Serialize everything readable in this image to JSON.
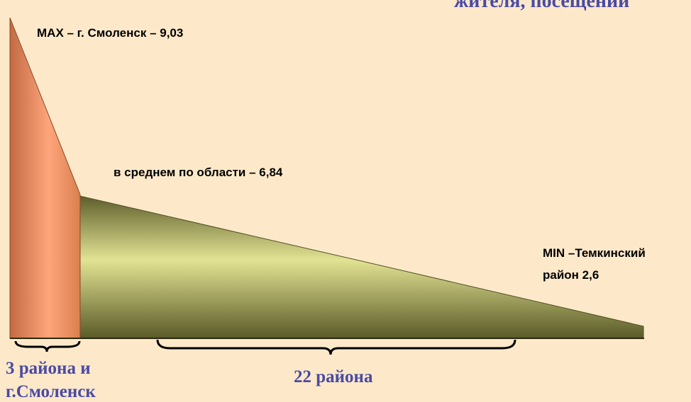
{
  "header": {
    "title": "жителя, посещений"
  },
  "labels": {
    "max": "MAX – г. Смоленск – 9,03",
    "average": "в среднем по области – 6,84",
    "min": [
      "MIN –Темкинский",
      "район 2,6"
    ]
  },
  "groups": [
    {
      "label": [
        "3 района и",
        "г.Смоленск"
      ]
    },
    {
      "label": [
        "22 района"
      ]
    }
  ]
}
